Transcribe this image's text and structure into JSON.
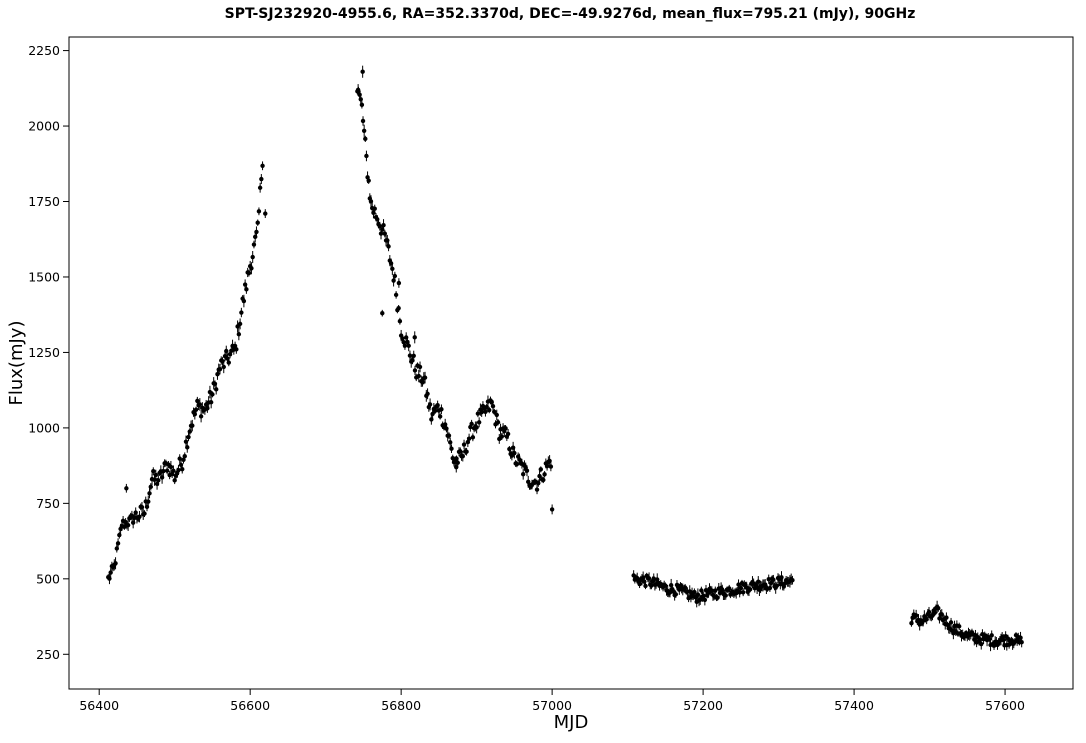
{
  "chart_data": {
    "type": "scatter",
    "title": "SPT-SJ232920-4955.6, RA=352.3370d, DEC=-49.9276d, mean_flux=795.21 (mJy), 90GHz",
    "xlabel": "MJD",
    "ylabel": "Flux(mJy)",
    "xlim": [
      56360,
      57690
    ],
    "ylim": [
      135,
      2295
    ],
    "xticks": [
      56400,
      56600,
      56800,
      57000,
      57200,
      57400,
      57600
    ],
    "yticks": [
      250,
      500,
      750,
      1000,
      1250,
      1500,
      1750,
      2000,
      2250
    ],
    "grid": false,
    "marker_color": "#000000",
    "error_bars": true,
    "anchors": [
      [
        56412,
        500
      ],
      [
        56420,
        540
      ],
      [
        56430,
        680
      ],
      [
        56440,
        690
      ],
      [
        56450,
        710
      ],
      [
        56460,
        720
      ],
      [
        56470,
        830
      ],
      [
        56480,
        830
      ],
      [
        56490,
        880
      ],
      [
        56500,
        840
      ],
      [
        56510,
        890
      ],
      [
        56520,
        1000
      ],
      [
        56530,
        1070
      ],
      [
        56540,
        1060
      ],
      [
        56550,
        1110
      ],
      [
        56560,
        1200
      ],
      [
        56570,
        1230
      ],
      [
        56580,
        1260
      ],
      [
        56590,
        1410
      ],
      [
        56600,
        1540
      ],
      [
        56610,
        1650
      ],
      [
        56618,
        1960
      ],
      [
        56742,
        2130
      ],
      [
        56748,
        2060
      ],
      [
        56754,
        1890
      ],
      [
        56760,
        1740
      ],
      [
        56770,
        1690
      ],
      [
        56780,
        1620
      ],
      [
        56790,
        1510
      ],
      [
        56800,
        1330
      ],
      [
        56810,
        1260
      ],
      [
        56820,
        1190
      ],
      [
        56830,
        1160
      ],
      [
        56840,
        1040
      ],
      [
        56850,
        1070
      ],
      [
        56860,
        1000
      ],
      [
        56870,
        890
      ],
      [
        56880,
        900
      ],
      [
        56890,
        970
      ],
      [
        56900,
        1020
      ],
      [
        56910,
        1050
      ],
      [
        56920,
        1080
      ],
      [
        56930,
        990
      ],
      [
        56940,
        970
      ],
      [
        56950,
        900
      ],
      [
        56960,
        870
      ],
      [
        56970,
        830
      ],
      [
        56980,
        820
      ],
      [
        56990,
        860
      ],
      [
        57000,
        900
      ],
      [
        57108,
        500
      ],
      [
        57130,
        490
      ],
      [
        57150,
        470
      ],
      [
        57170,
        460
      ],
      [
        57190,
        440
      ],
      [
        57210,
        450
      ],
      [
        57230,
        460
      ],
      [
        57250,
        470
      ],
      [
        57270,
        480
      ],
      [
        57290,
        485
      ],
      [
        57310,
        490
      ],
      [
        57320,
        495
      ],
      [
        57476,
        370
      ],
      [
        57490,
        360
      ],
      [
        57510,
        390
      ],
      [
        57530,
        340
      ],
      [
        57550,
        310
      ],
      [
        57570,
        300
      ],
      [
        57590,
        295
      ],
      [
        57610,
        300
      ],
      [
        57622,
        290
      ]
    ],
    "gaps_after": [
      56620,
      57005,
      57322
    ],
    "outliers": [
      [
        56743,
        2120
      ],
      [
        56749,
        2180
      ],
      [
        56620,
        1710
      ],
      [
        56775,
        1380
      ],
      [
        56797,
        1480
      ],
      [
        56818,
        1300
      ],
      [
        57000,
        730
      ],
      [
        56873,
        870
      ],
      [
        56436,
        800
      ]
    ],
    "mean_error": 14
  }
}
